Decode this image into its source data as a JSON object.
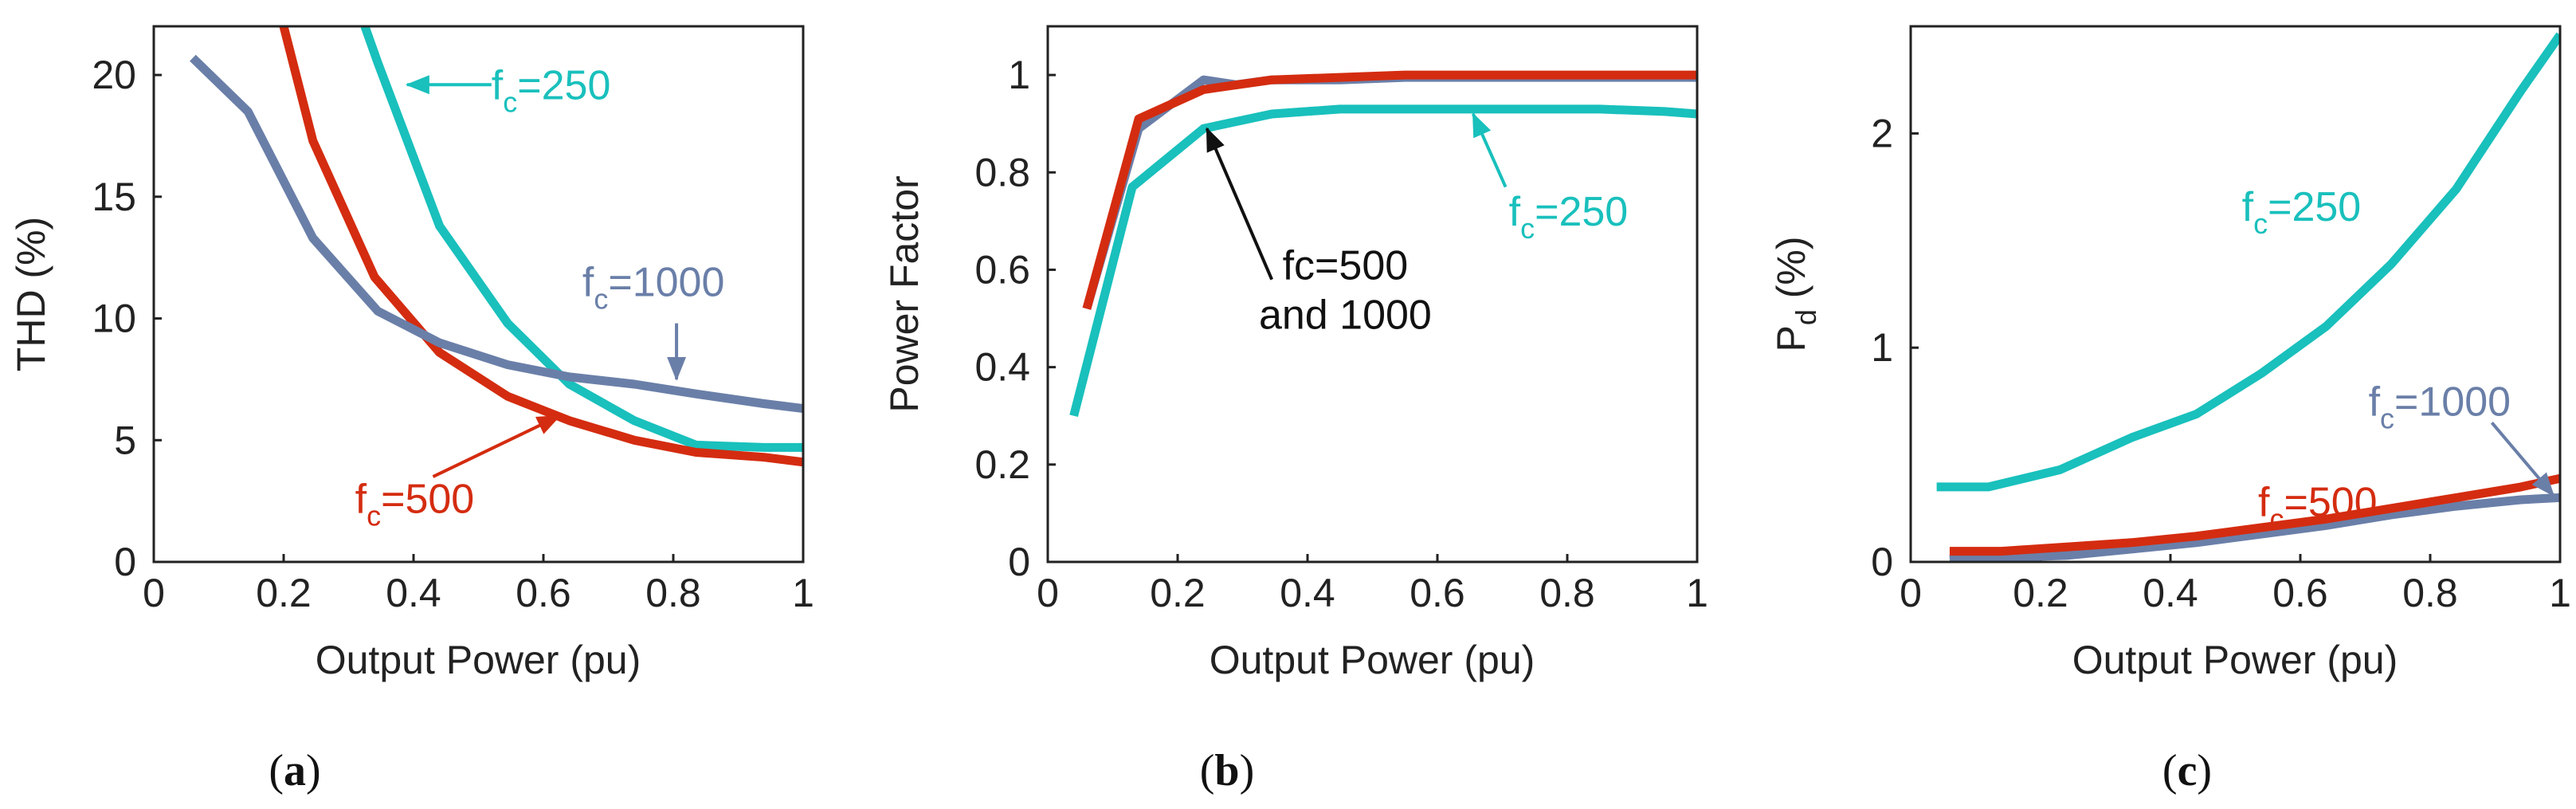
{
  "colors": {
    "f250": "#19C0BC",
    "f500": "#D42C10",
    "f1000": "#6A7FA8",
    "black": "#111111"
  },
  "chart_data": [
    {
      "id": "a",
      "type": "line",
      "caption": "(a)",
      "caption_letter": "a",
      "xlabel": "Output Power (pu)",
      "ylabel": "THD (%)",
      "xlim": [
        0,
        1
      ],
      "ylim": [
        0,
        22
      ],
      "xticks": [
        0,
        0.2,
        0.4,
        0.6,
        0.8,
        1
      ],
      "xtick_labels": [
        "0",
        "0.2",
        "0.4",
        "0.6",
        "0.8",
        "1"
      ],
      "yticks": [
        0,
        5,
        10,
        15,
        20
      ],
      "ytick_labels": [
        "0",
        "5",
        "10",
        "15",
        "20"
      ],
      "series": [
        {
          "name": "fc=250",
          "color_key": "f250",
          "x": [
            0.325,
            0.345,
            0.44,
            0.545,
            0.64,
            0.74,
            0.835,
            0.94,
            1.0
          ],
          "y": [
            22,
            20.5,
            13.8,
            9.8,
            7.3,
            5.8,
            4.8,
            4.7,
            4.7
          ]
        },
        {
          "name": "fc=500",
          "color_key": "f500",
          "x": [
            0.2,
            0.245,
            0.34,
            0.44,
            0.545,
            0.64,
            0.74,
            0.835,
            0.94,
            1.0
          ],
          "y": [
            22,
            17.3,
            11.7,
            8.6,
            6.8,
            5.8,
            5.0,
            4.5,
            4.3,
            4.1
          ]
        },
        {
          "name": "fc=1000",
          "color_key": "f1000",
          "x": [
            0.06,
            0.145,
            0.245,
            0.345,
            0.44,
            0.545,
            0.64,
            0.74,
            0.835,
            0.94,
            1.0
          ],
          "y": [
            20.7,
            18.5,
            13.3,
            10.3,
            9.0,
            8.1,
            7.6,
            7.3,
            6.9,
            6.5,
            6.3
          ]
        }
      ],
      "annotations": [
        {
          "prefix": "f",
          "sub": "c",
          "value": "=250",
          "color_key": "f250",
          "arrow_from": [
            0.52,
            19.6
          ],
          "arrow_to": [
            0.39,
            19.6
          ],
          "text_at": [
            0.52,
            19.6
          ]
        },
        {
          "prefix": "f",
          "sub": "c",
          "value": "=1000",
          "color_key": "f1000",
          "arrow_from": [
            0.805,
            9.8
          ],
          "arrow_to": [
            0.805,
            7.5
          ],
          "text_at": [
            0.66,
            11.5
          ]
        },
        {
          "prefix": "f",
          "sub": "c",
          "value": "=500",
          "color_key": "f500",
          "arrow_from": [
            0.43,
            3.5
          ],
          "arrow_to": [
            0.625,
            6.0
          ],
          "text_at": [
            0.31,
            2.6
          ]
        }
      ]
    },
    {
      "id": "b",
      "type": "line",
      "caption": "(b)",
      "caption_letter": "b",
      "xlabel": "Output Power (pu)",
      "ylabel": "Power Factor",
      "xlim": [
        0,
        1
      ],
      "ylim": [
        0,
        1.1
      ],
      "xticks": [
        0,
        0.2,
        0.4,
        0.6,
        0.8,
        1
      ],
      "xtick_labels": [
        "0",
        "0.2",
        "0.4",
        "0.6",
        "0.8",
        "1"
      ],
      "yticks": [
        0,
        0.2,
        0.4,
        0.6,
        0.8,
        1
      ],
      "ytick_labels": [
        "0",
        "0.2",
        "0.4",
        "0.6",
        "0.8",
        "1"
      ],
      "series": [
        {
          "name": "fc=250",
          "color_key": "f250",
          "x": [
            0.04,
            0.13,
            0.24,
            0.345,
            0.45,
            0.55,
            0.65,
            0.75,
            0.85,
            0.95,
            1.0
          ],
          "y": [
            0.3,
            0.77,
            0.89,
            0.92,
            0.93,
            0.93,
            0.93,
            0.93,
            0.93,
            0.925,
            0.92
          ]
        },
        {
          "name": "fc=1000",
          "color_key": "f1000",
          "x": [
            0.06,
            0.14,
            0.24,
            0.29,
            0.345,
            0.45,
            0.55,
            0.65,
            0.75,
            0.85,
            0.95,
            1.0
          ],
          "y": [
            0.52,
            0.89,
            0.99,
            0.98,
            0.99,
            0.99,
            0.995,
            0.995,
            0.995,
            0.995,
            0.995,
            0.995
          ]
        },
        {
          "name": "fc=500",
          "color_key": "f500",
          "x": [
            0.06,
            0.14,
            0.24,
            0.345,
            0.45,
            0.55,
            0.65,
            0.75,
            0.85,
            0.95,
            1.0
          ],
          "y": [
            0.52,
            0.91,
            0.97,
            0.99,
            0.995,
            1.0,
            1.0,
            1.0,
            1.0,
            1.0,
            1.0
          ]
        }
      ],
      "annotations": [
        {
          "lines": [
            "fc=500",
            "and 1000"
          ],
          "color_key": "black",
          "arrow_from": [
            0.345,
            0.58
          ],
          "arrow_to": [
            0.245,
            0.89
          ],
          "text_at": [
            0.36,
            0.58
          ]
        },
        {
          "prefix": "f",
          "sub": "c",
          "value": "=250",
          "color_key": "f250",
          "arrow_from": [
            0.705,
            0.77
          ],
          "arrow_to": [
            0.655,
            0.92
          ],
          "text_at": [
            0.71,
            0.72
          ]
        }
      ]
    },
    {
      "id": "c",
      "type": "line",
      "caption": "(c)",
      "caption_letter": "c",
      "xlabel": "Output Power (pu)",
      "ylabel_main": "P",
      "ylabel_sub": "d",
      "ylabel_rest": " (%)",
      "xlim": [
        0,
        1
      ],
      "ylim": [
        0,
        2.5
      ],
      "xticks": [
        0,
        0.2,
        0.4,
        0.6,
        0.8,
        1
      ],
      "xtick_labels": [
        "0",
        "0.2",
        "0.4",
        "0.6",
        "0.8",
        "1"
      ],
      "yticks": [
        0,
        1,
        2
      ],
      "ytick_labels": [
        "0",
        "1",
        "2"
      ],
      "series": [
        {
          "name": "fc=250",
          "color_key": "f250",
          "x": [
            0.04,
            0.12,
            0.23,
            0.34,
            0.44,
            0.54,
            0.64,
            0.74,
            0.84,
            0.94,
            1.0
          ],
          "y": [
            0.35,
            0.35,
            0.43,
            0.58,
            0.69,
            0.88,
            1.1,
            1.39,
            1.74,
            2.2,
            2.46
          ]
        },
        {
          "name": "fc=1000",
          "color_key": "f1000",
          "x": [
            0.06,
            0.14,
            0.24,
            0.34,
            0.44,
            0.54,
            0.64,
            0.74,
            0.84,
            0.94,
            1.0
          ],
          "y": [
            0.01,
            0.02,
            0.03,
            0.06,
            0.09,
            0.13,
            0.17,
            0.22,
            0.26,
            0.29,
            0.3
          ]
        },
        {
          "name": "fc=500",
          "color_key": "f500",
          "x": [
            0.06,
            0.14,
            0.24,
            0.34,
            0.44,
            0.54,
            0.64,
            0.74,
            0.84,
            0.94,
            1.0
          ],
          "y": [
            0.05,
            0.05,
            0.07,
            0.09,
            0.12,
            0.16,
            0.2,
            0.25,
            0.3,
            0.35,
            0.39
          ]
        }
      ],
      "annotations": [
        {
          "prefix": "f",
          "sub": "c",
          "value": "=250",
          "color_key": "f250",
          "text_at": [
            0.51,
            1.66
          ]
        },
        {
          "prefix": "f",
          "sub": "c",
          "value": "=1000",
          "color_key": "f1000",
          "arrow_from": [
            0.895,
            0.65
          ],
          "arrow_to": [
            0.99,
            0.31
          ],
          "text_at": [
            0.705,
            0.75
          ]
        },
        {
          "prefix": "f",
          "sub": "c",
          "value": "=500",
          "color_key": "f500",
          "text_at": [
            0.535,
            0.28
          ]
        }
      ]
    }
  ]
}
